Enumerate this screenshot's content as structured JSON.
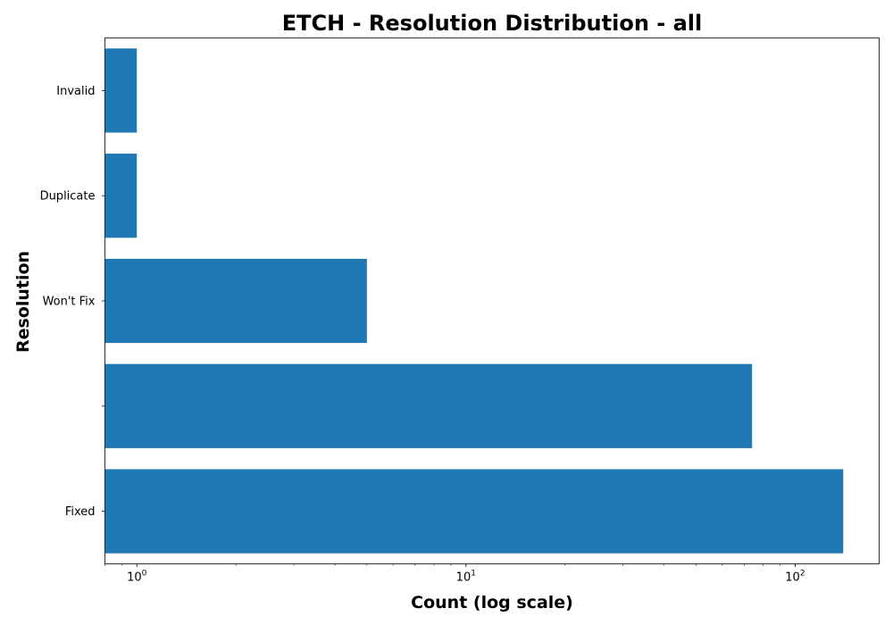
{
  "chart_data": {
    "type": "bar",
    "orientation": "horizontal",
    "title": "ETCH - Resolution Distribution - all",
    "xlabel": "Count (log scale)",
    "ylabel": "Resolution",
    "x_scale": "log",
    "xlim": [
      0.8,
      180
    ],
    "x_ticks": [
      {
        "value": 1,
        "base": "10",
        "exp": "0"
      },
      {
        "value": 10,
        "base": "10",
        "exp": "1"
      },
      {
        "value": 100,
        "base": "10",
        "exp": "2"
      }
    ],
    "categories": [
      "Fixed",
      "",
      "Won't Fix",
      "Duplicate",
      "Invalid"
    ],
    "values": [
      140,
      74,
      5,
      1,
      1
    ],
    "bar_color": "#1f77b4",
    "grid": false,
    "legend": "none"
  }
}
